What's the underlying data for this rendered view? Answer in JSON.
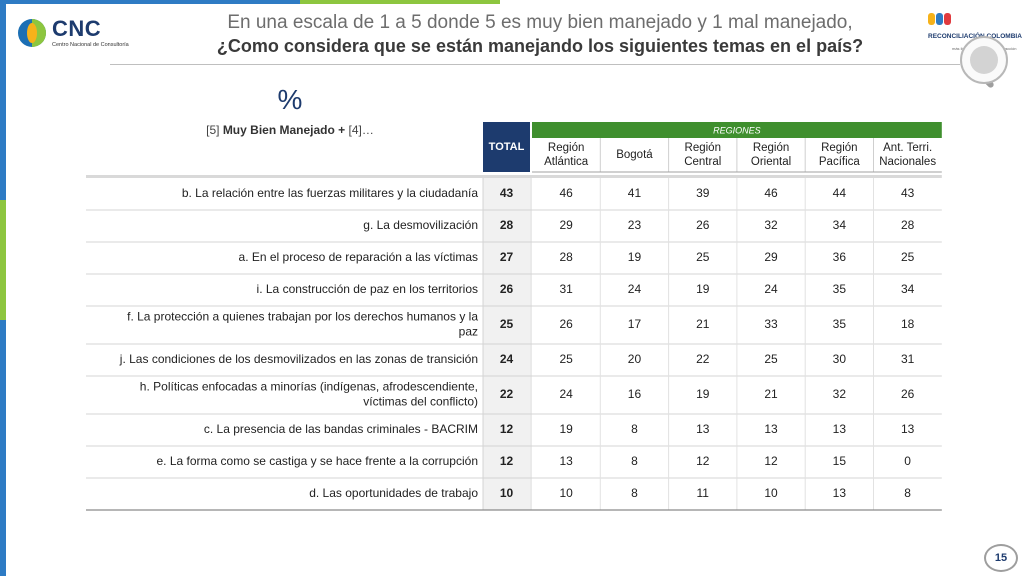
{
  "header": {
    "logo_text": "CNC",
    "logo_subtitle": "Centro Nacional de Consultoría",
    "title_line1": "En una escala de 1 a 5 donde 5 es muy bien manejado y 1 mal manejado,",
    "title_line2": "¿Como considera que se están manejando los siguientes temas en el país?",
    "brand_name": "RECONCILIACIÓN COLOMBIA",
    "brand_tagline": "más ilusión, más región, más acción"
  },
  "measure": {
    "unit": "%",
    "subtitle_prefix": "[5] ",
    "subtitle_bold": "Muy Bien Manejado +",
    "subtitle_suffix": " [4]…"
  },
  "colors": {
    "green": "#3f8f2e",
    "total_bg": "#1d3b6e",
    "stripe_blue": "#2e7bc4",
    "stripe_green": "#8dc63f",
    "stripe_yellow": "#f6b21a"
  },
  "chart_data": {
    "type": "table",
    "group_header": "REGIONES",
    "total_label": "TOTAL",
    "columns": [
      "Región Atlántica",
      "Bogotá",
      "Región Central",
      "Región Oriental",
      "Región Pacífica",
      "Ant. Terri. Nacionales"
    ],
    "rows": [
      {
        "label": "b. La relación entre las fuerzas militares y la ciudadanía",
        "total": 43,
        "values": [
          46,
          41,
          39,
          46,
          44,
          43
        ]
      },
      {
        "label": "g. La desmovilización",
        "total": 28,
        "values": [
          29,
          23,
          26,
          32,
          34,
          28
        ]
      },
      {
        "label": "a. En el proceso de reparación a las víctimas",
        "total": 27,
        "values": [
          28,
          19,
          25,
          29,
          36,
          25
        ]
      },
      {
        "label": "i. La construcción de paz en los territorios",
        "total": 26,
        "values": [
          31,
          24,
          19,
          24,
          35,
          34
        ]
      },
      {
        "label": "f. La protección a quienes trabajan por los derechos humanos y la paz",
        "total": 25,
        "values": [
          26,
          17,
          21,
          33,
          35,
          18
        ]
      },
      {
        "label": "j. Las condiciones de los desmovilizados en las zonas de transición",
        "total": 24,
        "values": [
          25,
          20,
          22,
          25,
          30,
          31
        ]
      },
      {
        "label": "h. Políticas enfocadas a minorías (indígenas, afrodescendiente, víctimas del conflicto)",
        "total": 22,
        "values": [
          24,
          16,
          19,
          21,
          32,
          26
        ]
      },
      {
        "label": "c. La presencia de las bandas criminales - BACRIM",
        "total": 12,
        "values": [
          19,
          8,
          13,
          13,
          13,
          13
        ]
      },
      {
        "label": "e. La forma como se castiga y se hace frente a la corrupción",
        "total": 12,
        "values": [
          13,
          8,
          12,
          12,
          15,
          0
        ]
      },
      {
        "label": "d. Las oportunidades de trabajo",
        "total": 10,
        "values": [
          10,
          8,
          11,
          10,
          13,
          8
        ]
      }
    ]
  },
  "footer": {
    "page_number": "15"
  }
}
